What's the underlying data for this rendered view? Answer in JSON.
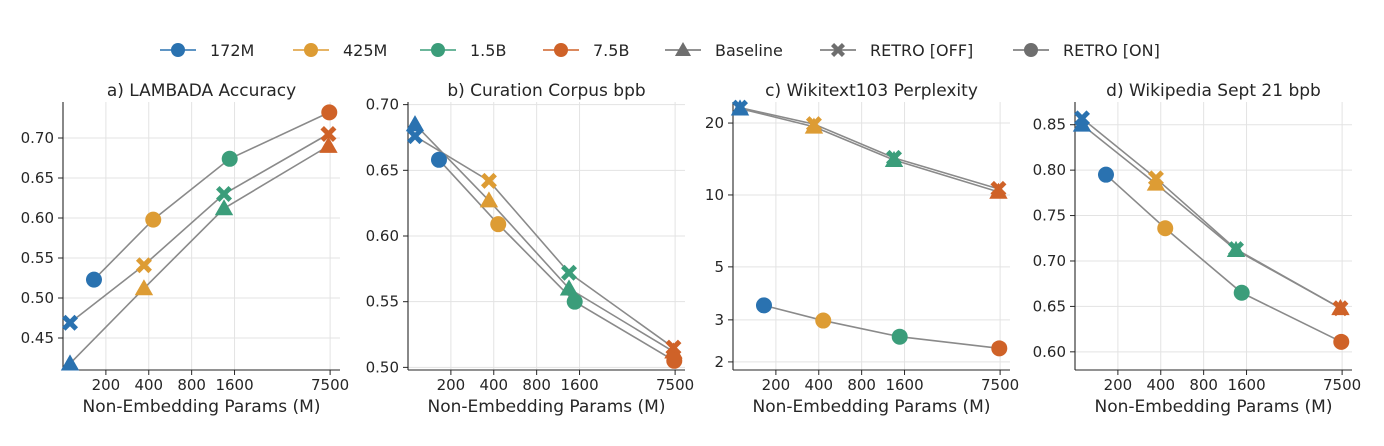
{
  "legend": {
    "entries": [
      {
        "label": "172M",
        "color": "#2a72b0",
        "marker": "circle",
        "line": true
      },
      {
        "label": "425M",
        "color": "#dd9c34",
        "marker": "circle",
        "line": true
      },
      {
        "label": "1.5B",
        "color": "#3b9d7a",
        "marker": "circle",
        "line": true
      },
      {
        "label": "7.5B",
        "color": "#cf6228",
        "marker": "circle",
        "line": true
      },
      {
        "label": "Baseline",
        "color": "#6e6e6e",
        "marker": "triangle",
        "line": true
      },
      {
        "label": "RETRO [OFF]",
        "color": "#6e6e6e",
        "marker": "x",
        "line": true
      },
      {
        "label": "RETRO [ON]",
        "color": "#6e6e6e",
        "marker": "circle",
        "line": true
      }
    ]
  },
  "colors": {
    "m172": "#2a72b0",
    "m425": "#dd9c34",
    "b15": "#3b9d7a",
    "b75": "#cf6228",
    "line": "#8a8a8a",
    "grid": "#e3e3e3"
  },
  "chart_data": [
    {
      "type": "line",
      "title": "a) LAMBADA Accuracy",
      "xlabel": "Non-Embedding Params (M)",
      "ylabel": "",
      "xscale": "log",
      "yscale": "linear",
      "xlim": [
        100,
        8800
      ],
      "ylim": [
        0.41,
        0.745
      ],
      "xticks": [
        200,
        400,
        800,
        1600,
        7500
      ],
      "xtick_labels": [
        "200",
        "400",
        "800",
        "1600",
        "7500"
      ],
      "yticks": [
        0.45,
        0.5,
        0.55,
        0.6,
        0.65,
        0.7
      ],
      "ytick_labels": [
        "0.45",
        "0.50",
        "0.55",
        "0.60",
        "0.65",
        "0.70"
      ],
      "grid": true,
      "series": [
        {
          "marker": "triangle",
          "x": [
            112,
            370,
            1350,
            7300
          ],
          "y": [
            0.418,
            0.512,
            0.612,
            0.69
          ]
        },
        {
          "marker": "x",
          "x": [
            112,
            370,
            1350,
            7300
          ],
          "y": [
            0.469,
            0.541,
            0.63,
            0.705
          ]
        },
        {
          "marker": "circle",
          "x": [
            165,
            430,
            1480,
            7400
          ],
          "y": [
            0.523,
            0.598,
            0.674,
            0.732
          ]
        }
      ]
    },
    {
      "type": "line",
      "title": "b) Curation Corpus bpb",
      "xlabel": "Non-Embedding Params (M)",
      "ylabel": "",
      "xscale": "log",
      "yscale": "linear",
      "xlim": [
        100,
        8800
      ],
      "ylim": [
        0.498,
        0.702
      ],
      "xticks": [
        200,
        400,
        800,
        1600,
        7500
      ],
      "xtick_labels": [
        "200",
        "400",
        "800",
        "1600",
        "7500"
      ],
      "yticks": [
        0.5,
        0.55,
        0.6,
        0.65,
        0.7
      ],
      "ytick_labels": [
        "0.50",
        "0.55",
        "0.60",
        "0.65",
        "0.70"
      ],
      "grid": true,
      "series": [
        {
          "marker": "triangle",
          "x": [
            112,
            370,
            1350,
            7300
          ],
          "y": [
            0.685,
            0.627,
            0.56,
            0.512
          ]
        },
        {
          "marker": "x",
          "x": [
            112,
            370,
            1350,
            7300
          ],
          "y": [
            0.676,
            0.642,
            0.572,
            0.515
          ]
        },
        {
          "marker": "circle",
          "x": [
            165,
            430,
            1480,
            7400
          ],
          "y": [
            0.658,
            0.609,
            0.55,
            0.505
          ]
        }
      ]
    },
    {
      "type": "line",
      "title": "c) Wikitext103 Perplexity",
      "xlabel": "Non-Embedding Params (M)",
      "ylabel": "",
      "xscale": "log",
      "yscale": "log",
      "xlim": [
        100,
        8800
      ],
      "ylim": [
        1.85,
        24.5
      ],
      "xticks": [
        200,
        400,
        800,
        1600,
        7500
      ],
      "xtick_labels": [
        "200",
        "400",
        "800",
        "1600",
        "7500"
      ],
      "yticks": [
        2,
        3,
        5,
        10,
        20
      ],
      "ytick_labels": [
        "2",
        "3",
        "5",
        "10",
        "20"
      ],
      "grid": true,
      "series": [
        {
          "marker": "triangle",
          "x": [
            112,
            370,
            1350,
            7300
          ],
          "y": [
            23.0,
            19.3,
            14.0,
            10.3
          ]
        },
        {
          "marker": "x",
          "x": [
            112,
            370,
            1350,
            7300
          ],
          "y": [
            23.2,
            19.8,
            14.3,
            10.6
          ]
        },
        {
          "marker": "circle",
          "x": [
            165,
            430,
            1480,
            7400
          ],
          "y": [
            3.45,
            2.98,
            2.55,
            2.28
          ]
        }
      ]
    },
    {
      "type": "line",
      "title": "d) Wikipedia Sept 21 bpb",
      "xlabel": "Non-Embedding Params (M)",
      "ylabel": "",
      "xscale": "log",
      "yscale": "linear",
      "xlim": [
        100,
        8800
      ],
      "ylim": [
        0.58,
        0.875
      ],
      "xticks": [
        200,
        400,
        800,
        1600,
        7500
      ],
      "xtick_labels": [
        "200",
        "400",
        "800",
        "1600",
        "7500"
      ],
      "yticks": [
        0.6,
        0.65,
        0.7,
        0.75,
        0.8,
        0.85
      ],
      "ytick_labels": [
        "0.60",
        "0.65",
        "0.70",
        "0.75",
        "0.80",
        "0.85"
      ],
      "grid": true,
      "series": [
        {
          "marker": "triangle",
          "x": [
            112,
            370,
            1350,
            7300
          ],
          "y": [
            0.85,
            0.785,
            0.712,
            0.648
          ]
        },
        {
          "marker": "x",
          "x": [
            112,
            370,
            1350,
            7300
          ],
          "y": [
            0.857,
            0.791,
            0.713,
            0.648
          ]
        },
        {
          "marker": "circle",
          "x": [
            165,
            430,
            1480,
            7400
          ],
          "y": [
            0.795,
            0.736,
            0.665,
            0.611
          ]
        }
      ]
    }
  ]
}
